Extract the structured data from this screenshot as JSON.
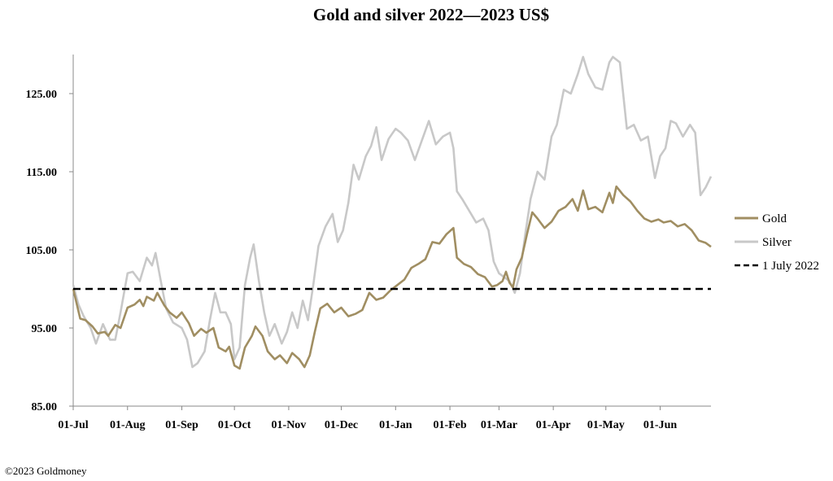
{
  "chart_data": {
    "type": "line",
    "title": "Gold and silver 2022—2023  US$",
    "ylim": [
      85,
      130
    ],
    "yticks": [
      "125.00",
      "115.00",
      "105.00",
      "95.00",
      "85.00"
    ],
    "ytick_values": [
      125,
      115,
      105,
      95,
      85
    ],
    "x_start": "2022-07-01",
    "x_end": "2023-06-30",
    "xticks": [
      "01-Jul",
      "01-Aug",
      "01-Sep",
      "01-Oct",
      "01-Nov",
      "01-Dec",
      "01-Jan",
      "01-Feb",
      "01-Mar",
      "01-Apr",
      "01-May",
      "01-Jun"
    ],
    "xtick_dates": [
      "2022-07-01",
      "2022-08-01",
      "2022-09-01",
      "2022-10-01",
      "2022-11-01",
      "2022-12-01",
      "2023-01-01",
      "2023-02-01",
      "2023-03-01",
      "2023-04-01",
      "2023-05-01",
      "2023-06-01"
    ],
    "legend_position": "right",
    "series": [
      {
        "name": "Gold",
        "color": "#a08e62",
        "style": "solid",
        "points": [
          [
            "2022-07-01",
            100.0
          ],
          [
            "2022-07-05",
            96.2
          ],
          [
            "2022-07-08",
            96.0
          ],
          [
            "2022-07-12",
            95.2
          ],
          [
            "2022-07-15",
            94.3
          ],
          [
            "2022-07-19",
            94.5
          ],
          [
            "2022-07-21",
            94.0
          ],
          [
            "2022-07-25",
            95.4
          ],
          [
            "2022-07-28",
            95.0
          ],
          [
            "2022-08-01",
            97.6
          ],
          [
            "2022-08-05",
            98.0
          ],
          [
            "2022-08-08",
            98.6
          ],
          [
            "2022-08-10",
            97.8
          ],
          [
            "2022-08-12",
            99.0
          ],
          [
            "2022-08-16",
            98.5
          ],
          [
            "2022-08-18",
            99.5
          ],
          [
            "2022-08-22",
            97.9
          ],
          [
            "2022-08-25",
            97.0
          ],
          [
            "2022-08-29",
            96.3
          ],
          [
            "2022-09-01",
            97.0
          ],
          [
            "2022-09-05",
            95.6
          ],
          [
            "2022-09-08",
            94.0
          ],
          [
            "2022-09-12",
            94.9
          ],
          [
            "2022-09-15",
            94.4
          ],
          [
            "2022-09-19",
            95.0
          ],
          [
            "2022-09-22",
            92.5
          ],
          [
            "2022-09-26",
            92.0
          ],
          [
            "2022-09-28",
            92.6
          ],
          [
            "2022-10-01",
            90.2
          ],
          [
            "2022-10-04",
            89.8
          ],
          [
            "2022-10-07",
            92.5
          ],
          [
            "2022-10-11",
            94.0
          ],
          [
            "2022-10-13",
            95.2
          ],
          [
            "2022-10-17",
            94.0
          ],
          [
            "2022-10-20",
            92.0
          ],
          [
            "2022-10-24",
            91.0
          ],
          [
            "2022-10-27",
            91.5
          ],
          [
            "2022-10-31",
            90.5
          ],
          [
            "2022-11-03",
            91.8
          ],
          [
            "2022-11-07",
            91.0
          ],
          [
            "2022-11-10",
            90.0
          ],
          [
            "2022-11-13",
            91.5
          ],
          [
            "2022-11-16",
            94.6
          ],
          [
            "2022-11-19",
            97.5
          ],
          [
            "2022-11-23",
            98.1
          ],
          [
            "2022-11-27",
            97.0
          ],
          [
            "2022-12-01",
            97.6
          ],
          [
            "2022-12-05",
            96.5
          ],
          [
            "2022-12-09",
            96.8
          ],
          [
            "2022-12-13",
            97.3
          ],
          [
            "2022-12-17",
            99.5
          ],
          [
            "2022-12-21",
            98.6
          ],
          [
            "2022-12-25",
            98.9
          ],
          [
            "2022-12-29",
            99.8
          ],
          [
            "2023-01-02",
            100.5
          ],
          [
            "2023-01-06",
            101.2
          ],
          [
            "2023-01-10",
            102.7
          ],
          [
            "2023-01-14",
            103.2
          ],
          [
            "2023-01-18",
            103.8
          ],
          [
            "2023-01-22",
            106.0
          ],
          [
            "2023-01-26",
            105.8
          ],
          [
            "2023-01-30",
            107.0
          ],
          [
            "2023-02-03",
            107.8
          ],
          [
            "2023-02-05",
            104.0
          ],
          [
            "2023-02-09",
            103.2
          ],
          [
            "2023-02-13",
            102.8
          ],
          [
            "2023-02-17",
            101.9
          ],
          [
            "2023-02-21",
            101.5
          ],
          [
            "2023-02-25",
            100.3
          ],
          [
            "2023-02-28",
            100.5
          ],
          [
            "2023-03-03",
            101.0
          ],
          [
            "2023-03-05",
            102.2
          ],
          [
            "2023-03-07",
            100.8
          ],
          [
            "2023-03-09",
            100.2
          ],
          [
            "2023-03-11",
            102.5
          ],
          [
            "2023-03-14",
            104.0
          ],
          [
            "2023-03-17",
            107.0
          ],
          [
            "2023-03-20",
            109.8
          ],
          [
            "2023-03-23",
            109.0
          ],
          [
            "2023-03-27",
            107.8
          ],
          [
            "2023-03-31",
            108.6
          ],
          [
            "2023-04-04",
            110.0
          ],
          [
            "2023-04-08",
            110.5
          ],
          [
            "2023-04-12",
            111.5
          ],
          [
            "2023-04-15",
            110.0
          ],
          [
            "2023-04-18",
            112.6
          ],
          [
            "2023-04-21",
            110.2
          ],
          [
            "2023-04-25",
            110.5
          ],
          [
            "2023-04-29",
            109.8
          ],
          [
            "2023-05-03",
            112.3
          ],
          [
            "2023-05-05",
            111.0
          ],
          [
            "2023-05-07",
            113.1
          ],
          [
            "2023-05-11",
            112.0
          ],
          [
            "2023-05-15",
            111.2
          ],
          [
            "2023-05-19",
            110.0
          ],
          [
            "2023-05-23",
            109.0
          ],
          [
            "2023-05-27",
            108.6
          ],
          [
            "2023-05-31",
            108.9
          ],
          [
            "2023-06-03",
            108.5
          ],
          [
            "2023-06-07",
            108.7
          ],
          [
            "2023-06-11",
            108.0
          ],
          [
            "2023-06-15",
            108.3
          ],
          [
            "2023-06-19",
            107.5
          ],
          [
            "2023-06-23",
            106.2
          ],
          [
            "2023-06-27",
            105.9
          ],
          [
            "2023-06-30",
            105.4
          ]
        ]
      },
      {
        "name": "Silver",
        "color": "#c8c8c8",
        "style": "solid",
        "points": [
          [
            "2022-07-01",
            100.5
          ],
          [
            "2022-07-04",
            98.0
          ],
          [
            "2022-07-07",
            96.5
          ],
          [
            "2022-07-11",
            95.0
          ],
          [
            "2022-07-14",
            93.0
          ],
          [
            "2022-07-18",
            95.5
          ],
          [
            "2022-07-22",
            93.5
          ],
          [
            "2022-07-25",
            93.5
          ],
          [
            "2022-07-28",
            97.0
          ],
          [
            "2022-08-01",
            102.0
          ],
          [
            "2022-08-04",
            102.2
          ],
          [
            "2022-08-08",
            101.0
          ],
          [
            "2022-08-12",
            104.0
          ],
          [
            "2022-08-15",
            103.0
          ],
          [
            "2022-08-17",
            104.6
          ],
          [
            "2022-08-20",
            101.0
          ],
          [
            "2022-08-23",
            97.5
          ],
          [
            "2022-08-27",
            95.7
          ],
          [
            "2022-09-01",
            95.0
          ],
          [
            "2022-09-04",
            93.5
          ],
          [
            "2022-09-07",
            90.0
          ],
          [
            "2022-09-10",
            90.5
          ],
          [
            "2022-09-14",
            92.0
          ],
          [
            "2022-09-17",
            96.0
          ],
          [
            "2022-09-20",
            99.5
          ],
          [
            "2022-09-23",
            97.0
          ],
          [
            "2022-09-26",
            97.0
          ],
          [
            "2022-09-29",
            95.5
          ],
          [
            "2022-10-01",
            91.0
          ],
          [
            "2022-10-04",
            92.5
          ],
          [
            "2022-10-07",
            100.5
          ],
          [
            "2022-10-10",
            104.0
          ],
          [
            "2022-10-12",
            105.7
          ],
          [
            "2022-10-15",
            101.0
          ],
          [
            "2022-10-18",
            97.0
          ],
          [
            "2022-10-21",
            94.0
          ],
          [
            "2022-10-24",
            95.5
          ],
          [
            "2022-10-28",
            93.0
          ],
          [
            "2022-10-31",
            94.5
          ],
          [
            "2022-11-03",
            97.0
          ],
          [
            "2022-11-06",
            95.0
          ],
          [
            "2022-11-09",
            98.5
          ],
          [
            "2022-11-12",
            96.0
          ],
          [
            "2022-11-15",
            100.5
          ],
          [
            "2022-11-18",
            105.5
          ],
          [
            "2022-11-22",
            108.0
          ],
          [
            "2022-11-26",
            109.6
          ],
          [
            "2022-11-29",
            106.0
          ],
          [
            "2022-12-02",
            107.5
          ],
          [
            "2022-12-05",
            111.0
          ],
          [
            "2022-12-08",
            115.9
          ],
          [
            "2022-12-11",
            114.0
          ],
          [
            "2022-12-15",
            117.0
          ],
          [
            "2022-12-18",
            118.3
          ],
          [
            "2022-12-21",
            120.7
          ],
          [
            "2022-12-24",
            116.5
          ],
          [
            "2022-12-28",
            119.2
          ],
          [
            "2023-01-01",
            120.5
          ],
          [
            "2023-01-04",
            120.0
          ],
          [
            "2023-01-08",
            119.0
          ],
          [
            "2023-01-12",
            116.5
          ],
          [
            "2023-01-16",
            119.0
          ],
          [
            "2023-01-20",
            121.5
          ],
          [
            "2023-01-24",
            118.5
          ],
          [
            "2023-01-28",
            119.5
          ],
          [
            "2023-02-01",
            120.0
          ],
          [
            "2023-02-03",
            118.0
          ],
          [
            "2023-02-05",
            112.5
          ],
          [
            "2023-02-08",
            111.5
          ],
          [
            "2023-02-12",
            110.0
          ],
          [
            "2023-02-16",
            108.5
          ],
          [
            "2023-02-20",
            109.0
          ],
          [
            "2023-02-23",
            107.5
          ],
          [
            "2023-02-26",
            103.5
          ],
          [
            "2023-03-01",
            102.0
          ],
          [
            "2023-03-04",
            101.5
          ],
          [
            "2023-03-07",
            101.0
          ],
          [
            "2023-03-10",
            99.5
          ],
          [
            "2023-03-13",
            102.0
          ],
          [
            "2023-03-16",
            107.0
          ],
          [
            "2023-03-19",
            111.5
          ],
          [
            "2023-03-23",
            115.0
          ],
          [
            "2023-03-27",
            114.0
          ],
          [
            "2023-03-31",
            119.5
          ],
          [
            "2023-04-03",
            121.0
          ],
          [
            "2023-04-07",
            125.5
          ],
          [
            "2023-04-11",
            125.0
          ],
          [
            "2023-04-15",
            127.5
          ],
          [
            "2023-04-18",
            129.7
          ],
          [
            "2023-04-21",
            127.5
          ],
          [
            "2023-04-25",
            125.8
          ],
          [
            "2023-04-29",
            125.5
          ],
          [
            "2023-05-03",
            129.0
          ],
          [
            "2023-05-05",
            129.7
          ],
          [
            "2023-05-09",
            129.0
          ],
          [
            "2023-05-13",
            120.5
          ],
          [
            "2023-05-17",
            121.0
          ],
          [
            "2023-05-21",
            119.0
          ],
          [
            "2023-05-25",
            119.5
          ],
          [
            "2023-05-29",
            114.2
          ],
          [
            "2023-06-01",
            117.0
          ],
          [
            "2023-06-04",
            118.0
          ],
          [
            "2023-06-07",
            121.5
          ],
          [
            "2023-06-10",
            121.2
          ],
          [
            "2023-06-14",
            119.5
          ],
          [
            "2023-06-18",
            121.0
          ],
          [
            "2023-06-21",
            120.0
          ],
          [
            "2023-06-24",
            112.0
          ],
          [
            "2023-06-27",
            113.0
          ],
          [
            "2023-06-30",
            114.4
          ]
        ]
      },
      {
        "name": "1 July 2022",
        "color": "#000000",
        "style": "dashed",
        "points": [
          [
            "2022-07-01",
            100.0
          ],
          [
            "2023-06-30",
            100.0
          ]
        ]
      }
    ]
  },
  "footer": {
    "credit": "©2023 Goldmoney"
  }
}
